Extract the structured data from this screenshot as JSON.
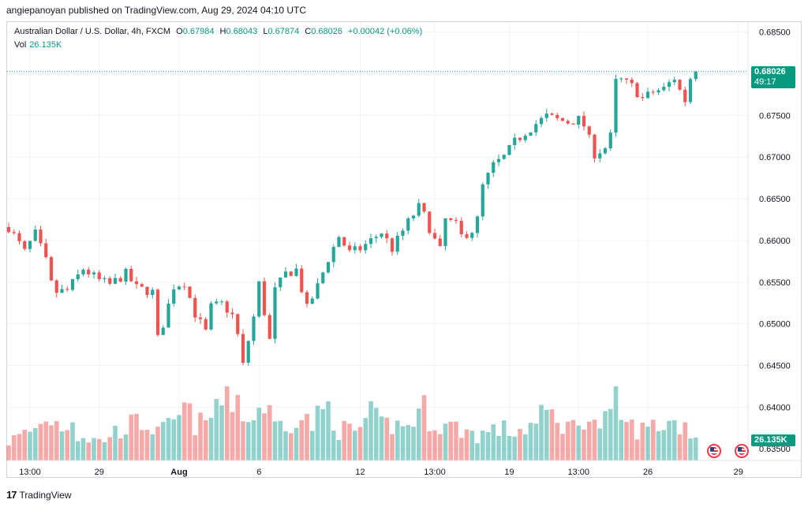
{
  "publisher_line": "angiepanoyan published on TradingView.com, Aug 29, 2024 04:10 UTC",
  "legend": {
    "symbol": "Australian Dollar / U.S. Dollar, 4h, FXCM",
    "open_label": "O",
    "open": "0.67984",
    "high_label": "H",
    "high": "0.68043",
    "low_label": "L",
    "low": "0.67874",
    "close_label": "C",
    "close": "0.68026",
    "change": "+0.00042 (+0.06%)",
    "vol_label": "Vol",
    "vol_value": "26.135K"
  },
  "price_badge": {
    "price": "0.68026",
    "countdown": "49:17"
  },
  "vol_badge": "26.135K",
  "footer": {
    "logo": "17",
    "brand": "TradingView"
  },
  "colors": {
    "up": "#26a69a",
    "down": "#ef5350",
    "up_text": "#089981",
    "grid": "#f0f3fa",
    "axis_text": "#131722"
  },
  "events": [
    {
      "icon": "us-flag-event-icon"
    },
    {
      "icon": "us-flag-event-icon"
    }
  ],
  "chart_data": {
    "type": "candlestick",
    "title": "Australian Dollar / U.S. Dollar, 4h, FXCM",
    "y_axis": {
      "ticks": [
        "0.68500",
        "0.68000",
        "0.67500",
        "0.67000",
        "0.66500",
        "0.66000",
        "0.65500",
        "0.65000",
        "0.64500",
        "0.64000",
        "0.63500"
      ],
      "range": [
        0.6336,
        0.6862
      ]
    },
    "x_axis": {
      "ticks": [
        {
          "label": "13:00",
          "bar": 4,
          "bold": false
        },
        {
          "label": "29",
          "bar": 17,
          "bold": false
        },
        {
          "label": "Aug",
          "bar": 32,
          "bold": true
        },
        {
          "label": "6",
          "bar": 47,
          "bold": false
        },
        {
          "label": "12",
          "bar": 66,
          "bold": false
        },
        {
          "label": "13:00",
          "bar": 80,
          "bold": false
        },
        {
          "label": "19",
          "bar": 94,
          "bold": false
        },
        {
          "label": "13:00",
          "bar": 107,
          "bold": false
        },
        {
          "label": "26",
          "bar": 120,
          "bold": false
        },
        {
          "label": "29",
          "bar": 137,
          "bold": false
        }
      ]
    },
    "last_price": 0.68026,
    "close_path": [
      [
        0,
        0.6616
      ],
      [
        3,
        0.6586
      ],
      [
        5,
        0.6608
      ],
      [
        7,
        0.6575
      ],
      [
        8,
        0.6548
      ],
      [
        9,
        0.6538
      ],
      [
        11,
        0.654
      ],
      [
        14,
        0.6566
      ],
      [
        17,
        0.6552
      ],
      [
        19,
        0.6547
      ],
      [
        22,
        0.656
      ],
      [
        24,
        0.6543
      ],
      [
        27,
        0.6538
      ],
      [
        28,
        0.6482
      ],
      [
        29,
        0.65
      ],
      [
        31,
        0.6545
      ],
      [
        33,
        0.655
      ],
      [
        35,
        0.6512
      ],
      [
        37,
        0.649
      ],
      [
        38,
        0.652
      ],
      [
        40,
        0.6524
      ],
      [
        42,
        0.651
      ],
      [
        43,
        0.6486
      ],
      [
        44,
        0.645
      ],
      [
        45,
        0.648
      ],
      [
        46,
        0.6508
      ],
      [
        47,
        0.6548
      ],
      [
        49,
        0.648
      ],
      [
        50,
        0.654
      ],
      [
        52,
        0.656
      ],
      [
        54,
        0.6565
      ],
      [
        56,
        0.6518
      ],
      [
        58,
        0.6545
      ],
      [
        60,
        0.6578
      ],
      [
        62,
        0.6605
      ],
      [
        64,
        0.6585
      ],
      [
        66,
        0.659
      ],
      [
        68,
        0.66
      ],
      [
        70,
        0.661
      ],
      [
        72,
        0.659
      ],
      [
        75,
        0.6622
      ],
      [
        77,
        0.664
      ],
      [
        78,
        0.663
      ],
      [
        80,
        0.66
      ],
      [
        81,
        0.6588
      ],
      [
        82,
        0.6625
      ],
      [
        84,
        0.6618
      ],
      [
        85,
        0.6605
      ],
      [
        87,
        0.6612
      ],
      [
        88,
        0.6625
      ],
      [
        89,
        0.6665
      ],
      [
        91,
        0.669
      ],
      [
        93,
        0.67
      ],
      [
        95,
        0.6718
      ],
      [
        97,
        0.673
      ],
      [
        99,
        0.674
      ],
      [
        101,
        0.6749
      ],
      [
        103,
        0.6745
      ],
      [
        105,
        0.6742
      ],
      [
        107,
        0.6745
      ],
      [
        108,
        0.6738
      ],
      [
        109,
        0.6721
      ],
      [
        110,
        0.6704
      ],
      [
        112,
        0.6711
      ],
      [
        113,
        0.6725
      ],
      [
        114,
        0.679
      ],
      [
        115,
        0.6792
      ],
      [
        117,
        0.6785
      ],
      [
        119,
        0.677
      ],
      [
        121,
        0.6778
      ],
      [
        123,
        0.6782
      ],
      [
        125,
        0.6795
      ],
      [
        126,
        0.678
      ],
      [
        127,
        0.6768
      ],
      [
        128,
        0.6795
      ],
      [
        129,
        0.6803
      ]
    ],
    "volume_profile": [
      [
        0,
        0.3
      ],
      [
        6,
        0.55
      ],
      [
        7,
        0.7
      ],
      [
        10,
        0.55
      ],
      [
        12,
        0.68
      ],
      [
        13,
        0.4
      ],
      [
        17,
        0.3
      ],
      [
        22,
        0.55
      ],
      [
        26,
        0.6
      ],
      [
        28,
        0.42
      ],
      [
        31,
        0.58
      ],
      [
        33,
        0.8
      ],
      [
        35,
        0.6
      ],
      [
        37,
        0.55
      ],
      [
        39,
        0.9
      ],
      [
        41,
        0.95
      ],
      [
        43,
        1.0
      ],
      [
        44,
        0.8
      ],
      [
        45,
        0.6
      ],
      [
        48,
        0.92
      ],
      [
        50,
        0.55
      ],
      [
        54,
        0.7
      ],
      [
        57,
        0.58
      ],
      [
        60,
        0.85
      ],
      [
        62,
        0.5
      ],
      [
        65,
        0.45
      ],
      [
        68,
        0.7
      ],
      [
        70,
        0.55
      ],
      [
        72,
        0.58
      ],
      [
        74,
        0.52
      ],
      [
        78,
        0.8
      ],
      [
        80,
        0.6
      ],
      [
        82,
        0.55
      ],
      [
        85,
        0.5
      ],
      [
        88,
        0.4
      ],
      [
        92,
        0.5
      ],
      [
        95,
        0.45
      ],
      [
        99,
        0.58
      ],
      [
        101,
        0.75
      ],
      [
        104,
        0.6
      ],
      [
        106,
        0.52
      ],
      [
        108,
        0.75
      ],
      [
        110,
        0.55
      ],
      [
        113,
        0.65
      ],
      [
        114,
        0.92
      ],
      [
        116,
        0.55
      ],
      [
        119,
        0.48
      ],
      [
        121,
        0.55
      ],
      [
        124,
        0.6
      ],
      [
        127,
        0.55
      ],
      [
        129,
        0.4
      ]
    ]
  }
}
